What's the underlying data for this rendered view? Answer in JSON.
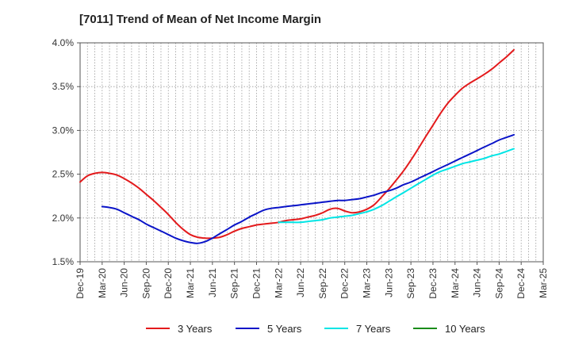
{
  "chart_data": {
    "type": "line",
    "title": "[7011]  Trend of Mean of Net Income Margin",
    "xlabel": "",
    "ylabel": "",
    "ylim": [
      1.5,
      4.0
    ],
    "yticks": [
      "1.5%",
      "2.0%",
      "2.5%",
      "3.0%",
      "3.5%",
      "4.0%"
    ],
    "ytick_values": [
      1.5,
      2.0,
      2.5,
      3.0,
      3.5,
      4.0
    ],
    "xticks": [
      "Dec-19",
      "Mar-20",
      "Jun-20",
      "Sep-20",
      "Dec-20",
      "Mar-21",
      "Jun-21",
      "Sep-21",
      "Dec-21",
      "Mar-22",
      "Jun-22",
      "Sep-22",
      "Dec-22",
      "Mar-23",
      "Jun-23",
      "Sep-23",
      "Dec-23",
      "Mar-24",
      "Jun-24",
      "Sep-24",
      "Dec-24",
      "Mar-25"
    ],
    "grid": true,
    "legend_position": "bottom",
    "series": [
      {
        "name": "3 Years",
        "color": "#e31a1c",
        "points": [
          [
            0,
            2.41
          ],
          [
            0.33,
            2.48
          ],
          [
            0.67,
            2.51
          ],
          [
            1,
            2.52
          ],
          [
            1.33,
            2.51
          ],
          [
            1.67,
            2.49
          ],
          [
            2,
            2.45
          ],
          [
            2.33,
            2.4
          ],
          [
            2.67,
            2.34
          ],
          [
            3,
            2.27
          ],
          [
            3.33,
            2.2
          ],
          [
            3.67,
            2.12
          ],
          [
            4,
            2.04
          ],
          [
            4.33,
            1.95
          ],
          [
            4.67,
            1.87
          ],
          [
            5,
            1.81
          ],
          [
            5.33,
            1.78
          ],
          [
            5.67,
            1.77
          ],
          [
            6,
            1.77
          ],
          [
            6.33,
            1.78
          ],
          [
            6.67,
            1.81
          ],
          [
            7,
            1.85
          ],
          [
            7.33,
            1.88
          ],
          [
            7.67,
            1.9
          ],
          [
            8,
            1.92
          ],
          [
            8.33,
            1.93
          ],
          [
            8.67,
            1.94
          ],
          [
            9,
            1.95
          ],
          [
            9.33,
            1.97
          ],
          [
            9.67,
            1.98
          ],
          [
            10,
            1.99
          ],
          [
            10.33,
            2.01
          ],
          [
            10.67,
            2.03
          ],
          [
            11,
            2.06
          ],
          [
            11.33,
            2.1
          ],
          [
            11.67,
            2.11
          ],
          [
            12,
            2.08
          ],
          [
            12.33,
            2.06
          ],
          [
            12.67,
            2.07
          ],
          [
            13,
            2.1
          ],
          [
            13.33,
            2.15
          ],
          [
            13.67,
            2.24
          ],
          [
            14,
            2.33
          ],
          [
            14.33,
            2.43
          ],
          [
            14.67,
            2.54
          ],
          [
            15,
            2.66
          ],
          [
            15.33,
            2.79
          ],
          [
            15.67,
            2.93
          ],
          [
            16,
            3.06
          ],
          [
            16.33,
            3.19
          ],
          [
            16.67,
            3.31
          ],
          [
            17,
            3.4
          ],
          [
            17.33,
            3.48
          ],
          [
            17.67,
            3.54
          ],
          [
            18,
            3.59
          ],
          [
            18.33,
            3.64
          ],
          [
            18.67,
            3.7
          ],
          [
            19,
            3.77
          ],
          [
            19.33,
            3.84
          ],
          [
            19.67,
            3.92
          ]
        ]
      },
      {
        "name": "5 Years",
        "color": "#0a14c8",
        "points": [
          [
            1,
            2.13
          ],
          [
            1.33,
            2.12
          ],
          [
            1.67,
            2.1
          ],
          [
            2,
            2.06
          ],
          [
            2.33,
            2.02
          ],
          [
            2.67,
            1.98
          ],
          [
            3,
            1.93
          ],
          [
            3.33,
            1.89
          ],
          [
            3.67,
            1.85
          ],
          [
            4,
            1.81
          ],
          [
            4.33,
            1.77
          ],
          [
            4.67,
            1.74
          ],
          [
            5,
            1.72
          ],
          [
            5.33,
            1.71
          ],
          [
            5.67,
            1.73
          ],
          [
            6,
            1.77
          ],
          [
            6.33,
            1.82
          ],
          [
            6.67,
            1.87
          ],
          [
            7,
            1.92
          ],
          [
            7.33,
            1.96
          ],
          [
            7.67,
            2.01
          ],
          [
            8,
            2.05
          ],
          [
            8.33,
            2.09
          ],
          [
            8.67,
            2.11
          ],
          [
            9,
            2.12
          ],
          [
            9.33,
            2.13
          ],
          [
            9.67,
            2.14
          ],
          [
            10,
            2.15
          ],
          [
            10.33,
            2.16
          ],
          [
            10.67,
            2.17
          ],
          [
            11,
            2.18
          ],
          [
            11.33,
            2.19
          ],
          [
            11.67,
            2.2
          ],
          [
            12,
            2.2
          ],
          [
            12.33,
            2.21
          ],
          [
            12.67,
            2.22
          ],
          [
            13,
            2.24
          ],
          [
            13.33,
            2.26
          ],
          [
            13.67,
            2.29
          ],
          [
            14,
            2.31
          ],
          [
            14.33,
            2.34
          ],
          [
            14.67,
            2.38
          ],
          [
            15,
            2.41
          ],
          [
            15.33,
            2.45
          ],
          [
            15.67,
            2.49
          ],
          [
            16,
            2.53
          ],
          [
            16.33,
            2.57
          ],
          [
            16.67,
            2.61
          ],
          [
            17,
            2.65
          ],
          [
            17.33,
            2.69
          ],
          [
            17.67,
            2.73
          ],
          [
            18,
            2.77
          ],
          [
            18.33,
            2.81
          ],
          [
            18.67,
            2.85
          ],
          [
            19,
            2.89
          ],
          [
            19.33,
            2.92
          ],
          [
            19.67,
            2.95
          ]
        ]
      },
      {
        "name": "7 Years",
        "color": "#00e5e5",
        "points": [
          [
            9,
            1.95
          ],
          [
            9.33,
            1.95
          ],
          [
            9.67,
            1.95
          ],
          [
            10,
            1.95
          ],
          [
            10.33,
            1.96
          ],
          [
            10.67,
            1.97
          ],
          [
            11,
            1.98
          ],
          [
            11.33,
            2.0
          ],
          [
            11.67,
            2.01
          ],
          [
            12,
            2.02
          ],
          [
            12.33,
            2.03
          ],
          [
            12.67,
            2.05
          ],
          [
            13,
            2.07
          ],
          [
            13.33,
            2.1
          ],
          [
            13.67,
            2.14
          ],
          [
            14,
            2.19
          ],
          [
            14.33,
            2.24
          ],
          [
            14.67,
            2.29
          ],
          [
            15,
            2.34
          ],
          [
            15.33,
            2.39
          ],
          [
            15.67,
            2.44
          ],
          [
            16,
            2.49
          ],
          [
            16.33,
            2.53
          ],
          [
            16.67,
            2.56
          ],
          [
            17,
            2.59
          ],
          [
            17.33,
            2.62
          ],
          [
            17.67,
            2.64
          ],
          [
            18,
            2.66
          ],
          [
            18.33,
            2.68
          ],
          [
            18.67,
            2.71
          ],
          [
            19,
            2.73
          ],
          [
            19.33,
            2.76
          ],
          [
            19.67,
            2.79
          ]
        ]
      },
      {
        "name": "10 Years",
        "color": "#1a8c1a",
        "points": []
      }
    ]
  }
}
